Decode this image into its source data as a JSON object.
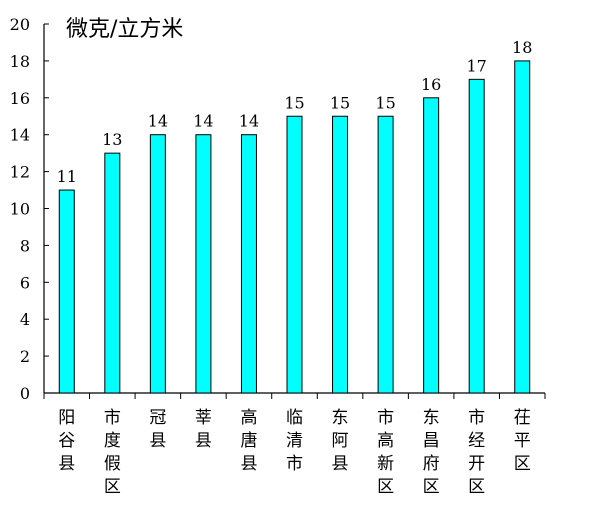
{
  "chart_data": {
    "type": "bar",
    "title": "",
    "ylabel": "微克/立方米",
    "xlabel": "",
    "ylim": [
      0,
      20
    ],
    "yticks": [
      0,
      2,
      4,
      6,
      8,
      10,
      12,
      14,
      16,
      18,
      20
    ],
    "grid": false,
    "legend": "none",
    "categories": [
      "阳谷县",
      "市度假区",
      "冠县",
      "莘县",
      "高唐县",
      "临清市",
      "东阿县",
      "市高新区",
      "东昌府区",
      "市经开区",
      "茌平区"
    ],
    "values": [
      11,
      13,
      14,
      14,
      14,
      15,
      15,
      15,
      16,
      17,
      18
    ],
    "data_labels": [
      "11",
      "13",
      "14",
      "14",
      "14",
      "15",
      "15",
      "15",
      "16",
      "17",
      "18"
    ],
    "colors": {
      "bar_fill": "#00FFFF",
      "bar_stroke": "#000000",
      "axis": "#000000"
    }
  }
}
